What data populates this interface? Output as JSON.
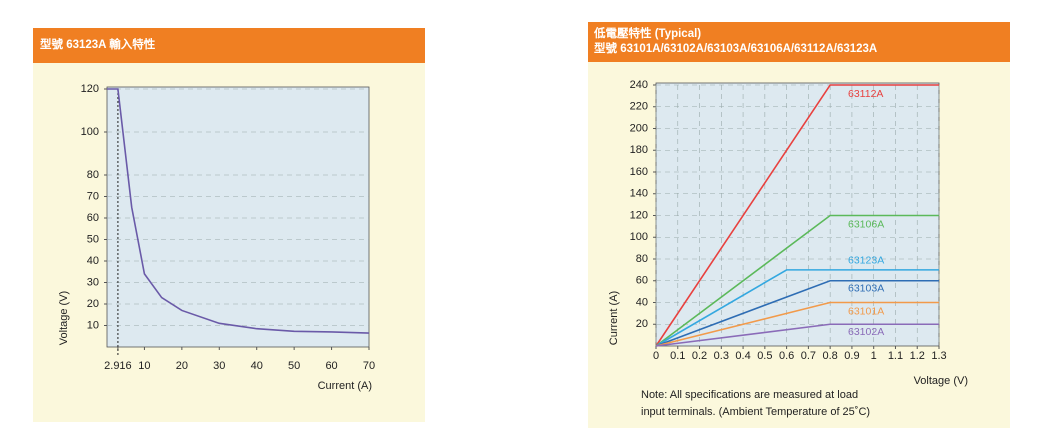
{
  "chart_data": [
    {
      "type": "line",
      "title": "型號 63123A 輸入特性",
      "x_label": "Current (A)",
      "y_label": "Voltage (V)",
      "x": [
        0,
        2.916,
        6.6,
        10,
        14.6,
        20,
        30,
        40,
        50,
        60,
        70
      ],
      "values": [
        120,
        120,
        65,
        34,
        23,
        17,
        11,
        8.5,
        7.3,
        7,
        6.5
      ],
      "color": "#6a5aa8",
      "xlim": [
        0,
        70
      ],
      "xticks": [
        2.916,
        10,
        20,
        30,
        40,
        50,
        60,
        70
      ],
      "ylim": [
        0,
        120
      ],
      "yticks": [
        10,
        20,
        30,
        40,
        50,
        60,
        70,
        80,
        100,
        120
      ],
      "reference_x": 2.916,
      "grid": "y"
    },
    {
      "type": "line",
      "title": "低電壓特性 (Typical)",
      "subtitle": "型號 63101A/63102A/63103A/63106A/63112A/63123A",
      "x_label": "Voltage (V)",
      "y_label": "Current (A)",
      "series": [
        {
          "name": "63112A",
          "color": "#e8413f",
          "x": [
            0,
            0.8,
            1.3
          ],
          "values": [
            0,
            240,
            240
          ]
        },
        {
          "name": "63106A",
          "color": "#5bb95a",
          "x": [
            0,
            0.8,
            1.3
          ],
          "values": [
            0,
            120,
            120
          ]
        },
        {
          "name": "63123A",
          "color": "#34a8e0",
          "x": [
            0,
            0.6,
            1.3
          ],
          "values": [
            0,
            70,
            70
          ]
        },
        {
          "name": "63103A",
          "color": "#2e6db4",
          "x": [
            0,
            0.8,
            1.3
          ],
          "values": [
            0,
            60,
            60
          ]
        },
        {
          "name": "63101A",
          "color": "#f29a4a",
          "x": [
            0,
            0.8,
            1.3
          ],
          "values": [
            0,
            40,
            40
          ]
        },
        {
          "name": "63102A",
          "color": "#8a6bb8",
          "x": [
            0,
            0.8,
            1.3
          ],
          "values": [
            0,
            20,
            20
          ]
        }
      ],
      "xlim": [
        0,
        1.3
      ],
      "xticks": [
        0,
        0.1,
        0.2,
        0.3,
        0.4,
        0.5,
        0.6,
        0.7,
        0.8,
        0.9,
        1.0,
        1.1,
        1.2,
        1.3
      ],
      "ylim": [
        0,
        240
      ],
      "yticks": [
        20,
        40,
        60,
        80,
        100,
        120,
        140,
        160,
        180,
        200,
        220,
        240
      ],
      "grid": "both",
      "note": [
        "Note: All specifications are measured at load",
        "input terminals. (Ambient Temperature of 25˚C)"
      ]
    }
  ]
}
